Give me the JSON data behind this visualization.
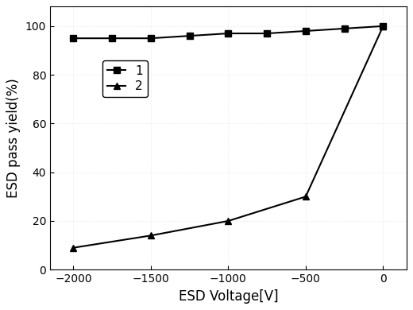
{
  "series1": {
    "x": [
      -2000,
      -1750,
      -1500,
      -1250,
      -1000,
      -750,
      -500,
      -250,
      0
    ],
    "y": [
      95,
      95,
      95,
      96,
      97,
      97,
      98,
      99,
      100
    ],
    "label": "1",
    "marker": "s",
    "color": "#000000"
  },
  "series2": {
    "x": [
      -2000,
      -1500,
      -1000,
      -500,
      0
    ],
    "y": [
      9,
      14,
      20,
      30,
      100
    ],
    "label": "2",
    "marker": "^",
    "color": "#000000"
  },
  "xlabel": "ESD Voltage[V]",
  "ylabel": "ESD pass yield(%)",
  "xlim": [
    -2150,
    150
  ],
  "ylim": [
    0,
    108
  ],
  "xticks": [
    -2000,
    -1500,
    -1000,
    -500,
    0
  ],
  "yticks": [
    0,
    20,
    40,
    60,
    80,
    100
  ],
  "background_color": "#ffffff",
  "label_fontsize": 12,
  "tick_fontsize": 10,
  "linewidth": 1.5,
  "markersize": 6
}
